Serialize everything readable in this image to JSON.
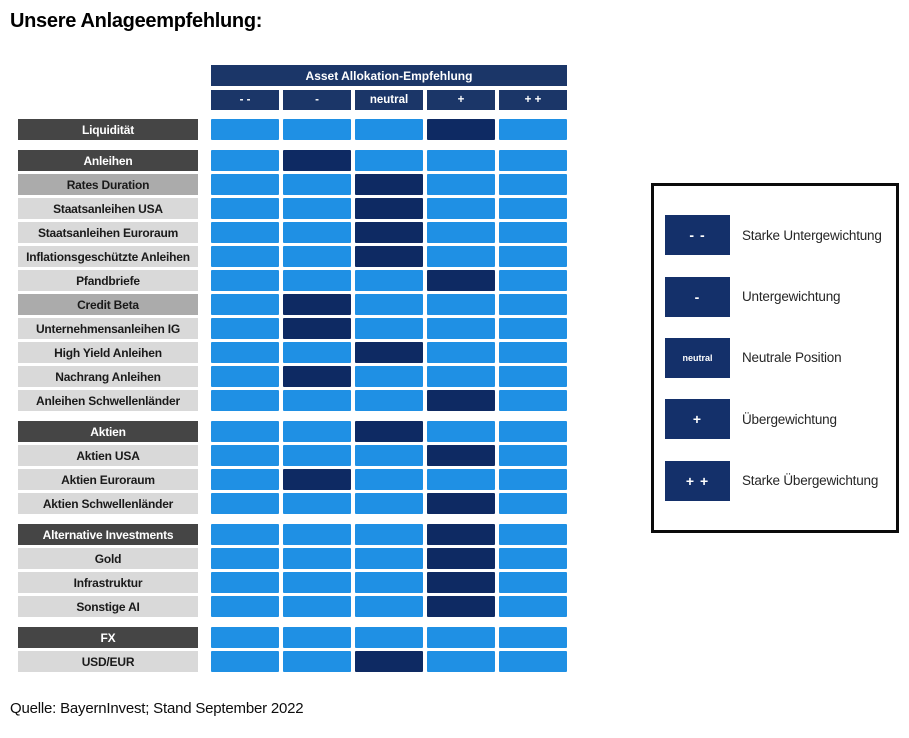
{
  "title": "Unsere Anlageempfehlung:",
  "source": "Quelle: BayernInvest; Stand September 2022",
  "colors": {
    "header_navy": "#1b3668",
    "selected_navy": "#0e2a63",
    "unselected_blue": "#1f90e4",
    "category_gray": "#454545",
    "subcategory_gray": "#ababab",
    "row_gray": "#d9d9d9"
  },
  "chart_data": {
    "type": "heatmap",
    "title": "Asset Allokation-Empfehlung",
    "columns": [
      "- -",
      "-",
      "neutral",
      "+",
      "+ +"
    ],
    "legend_position": "right",
    "groups": [
      {
        "rows": [
          {
            "label": "Liquidität",
            "style": "category",
            "selected": 3,
            "selected_rating": "+"
          }
        ]
      },
      {
        "rows": [
          {
            "label": "Anleihen",
            "style": "category",
            "selected": 1,
            "selected_rating": "-"
          },
          {
            "label": "Rates Duration",
            "style": "mid",
            "selected": 2,
            "selected_rating": "neutral"
          },
          {
            "label": "Staatsanleihen USA",
            "style": "light",
            "selected": 2,
            "selected_rating": "neutral"
          },
          {
            "label": "Staatsanleihen Euroraum",
            "style": "light",
            "selected": 2,
            "selected_rating": "neutral"
          },
          {
            "label": "Inflationsgeschützte Anleihen",
            "style": "light",
            "selected": 2,
            "selected_rating": "neutral"
          },
          {
            "label": "Pfandbriefe",
            "style": "light",
            "selected": 3,
            "selected_rating": "+"
          },
          {
            "label": "Credit Beta",
            "style": "mid",
            "selected": 1,
            "selected_rating": "-"
          },
          {
            "label": "Unternehmensanleihen IG",
            "style": "light",
            "selected": 1,
            "selected_rating": "-"
          },
          {
            "label": "High Yield Anleihen",
            "style": "light",
            "selected": 2,
            "selected_rating": "neutral"
          },
          {
            "label": "Nachrang Anleihen",
            "style": "light",
            "selected": 1,
            "selected_rating": "-"
          },
          {
            "label": "Anleihen Schwellenländer",
            "style": "light",
            "selected": 3,
            "selected_rating": "+"
          }
        ]
      },
      {
        "rows": [
          {
            "label": "Aktien",
            "style": "category",
            "selected": 2,
            "selected_rating": "neutral"
          },
          {
            "label": "Aktien USA",
            "style": "light",
            "selected": 3,
            "selected_rating": "+"
          },
          {
            "label": "Aktien Euroraum",
            "style": "light",
            "selected": 1,
            "selected_rating": "-"
          },
          {
            "label": "Aktien Schwellenländer",
            "style": "light",
            "selected": 3,
            "selected_rating": "+"
          }
        ]
      },
      {
        "rows": [
          {
            "label": "Alternative Investments",
            "style": "category",
            "selected": 3,
            "selected_rating": "+"
          },
          {
            "label": "Gold",
            "style": "light",
            "selected": 3,
            "selected_rating": "+"
          },
          {
            "label": "Infrastruktur",
            "style": "light",
            "selected": 3,
            "selected_rating": "+"
          },
          {
            "label": "Sonstige AI",
            "style": "light",
            "selected": 3,
            "selected_rating": "+"
          }
        ]
      },
      {
        "rows": [
          {
            "label": "FX",
            "style": "category",
            "selected": null,
            "selected_rating": null
          },
          {
            "label": "USD/EUR",
            "style": "light",
            "selected": 2,
            "selected_rating": "neutral"
          }
        ]
      }
    ]
  },
  "legend": {
    "items": [
      {
        "symbol": "- -",
        "label": "Starke Untergewichtung"
      },
      {
        "symbol": "-",
        "label": "Untergewichtung"
      },
      {
        "symbol": "neutral",
        "label": "Neutrale Position"
      },
      {
        "symbol": "+",
        "label": "Übergewichtung"
      },
      {
        "symbol": "+ +",
        "label": "Starke Übergewichtung"
      }
    ]
  }
}
